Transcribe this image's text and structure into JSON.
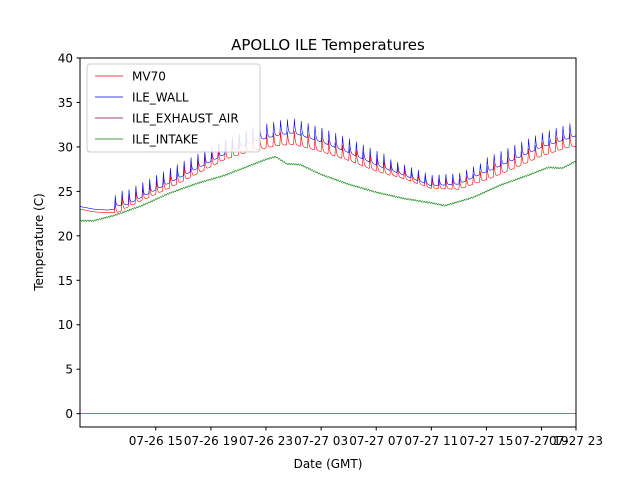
{
  "chart_data": {
    "type": "line",
    "title": "APOLLO ILE Temperatures",
    "xlabel": "Date (GMT)",
    "ylabel": "Temperature (C)",
    "xlim_hours": [
      9.5,
      45.5
    ],
    "ylim": [
      -1.5,
      40
    ],
    "yticks": [
      0,
      5,
      10,
      15,
      20,
      25,
      30,
      35,
      40
    ],
    "xticks": [
      {
        "hour": 15,
        "label": "07-26 15"
      },
      {
        "hour": 19,
        "label": "07-26 19"
      },
      {
        "hour": 23,
        "label": "07-26 23"
      },
      {
        "hour": 27,
        "label": "07-27 03"
      },
      {
        "hour": 31,
        "label": "07-27 07"
      },
      {
        "hour": 35,
        "label": "07-27 11"
      },
      {
        "hour": 39,
        "label": "07-27 15"
      },
      {
        "hour": 43,
        "label": "07-27 19"
      },
      {
        "hour": 47,
        "label": "07-27 23"
      }
    ],
    "legend_position": "top-left",
    "series": [
      {
        "name": "MV70",
        "color": "#ff0000",
        "hours": [
          9.5,
          10.5,
          11.5,
          12.0,
          13.0,
          14.0,
          16.0,
          18.0,
          20.0,
          22.0,
          24.0,
          25.0,
          27.0,
          29.0,
          31.0,
          33.0,
          35.0,
          37.0,
          39.0,
          41.0,
          43.0,
          45.0,
          45.5
        ],
        "values": [
          23.0,
          22.7,
          22.6,
          22.6,
          23.5,
          24.2,
          25.6,
          27.2,
          28.8,
          29.8,
          30.4,
          30.5,
          29.7,
          28.7,
          27.5,
          26.6,
          25.5,
          25.4,
          26.5,
          27.8,
          29.2,
          30.2,
          30.3
        ],
        "spike_amp": 1.5
      },
      {
        "name": "ILE_WALL",
        "color": "#0000ff",
        "hours": [
          9.5,
          10.5,
          11.5,
          12.0,
          12.2,
          13.0,
          14.0,
          16.0,
          18.0,
          20.0,
          22.0,
          24.0,
          25.0,
          27.0,
          29.0,
          31.0,
          33.0,
          35.0,
          37.0,
          39.0,
          41.0,
          43.0,
          45.0,
          45.5
        ],
        "values": [
          23.3,
          23.0,
          22.9,
          23.0,
          23.6,
          23.8,
          24.6,
          26.2,
          27.8,
          29.4,
          30.8,
          31.6,
          31.8,
          30.8,
          29.6,
          28.2,
          27.0,
          25.8,
          26.0,
          27.4,
          28.8,
          30.2,
          31.2,
          31.5
        ],
        "spike_amp": 1.6
      },
      {
        "name": "ILE_EXHAUST_AIR",
        "color": "#800080",
        "hours": [
          9.5,
          45.5
        ],
        "values": [
          0.0,
          0.0
        ],
        "spike_amp": 0
      },
      {
        "name": "ILE_INTAKE",
        "color": "#008000",
        "hours": [
          9.5,
          10.5,
          12.0,
          14.0,
          16.0,
          18.0,
          20.0,
          22.0,
          23.0,
          23.7,
          24.5,
          25.5,
          27.0,
          29.0,
          31.0,
          33.0,
          35.0,
          36.0,
          38.0,
          40.0,
          42.0,
          43.5,
          44.5,
          45.5
        ],
        "values": [
          21.7,
          21.7,
          22.3,
          23.4,
          24.8,
          25.9,
          26.8,
          28.0,
          28.6,
          28.9,
          28.1,
          28.0,
          26.9,
          25.8,
          24.9,
          24.2,
          23.7,
          23.4,
          24.3,
          25.7,
          26.8,
          27.7,
          27.6,
          28.4
        ],
        "spike_amp": 0
      }
    ]
  }
}
